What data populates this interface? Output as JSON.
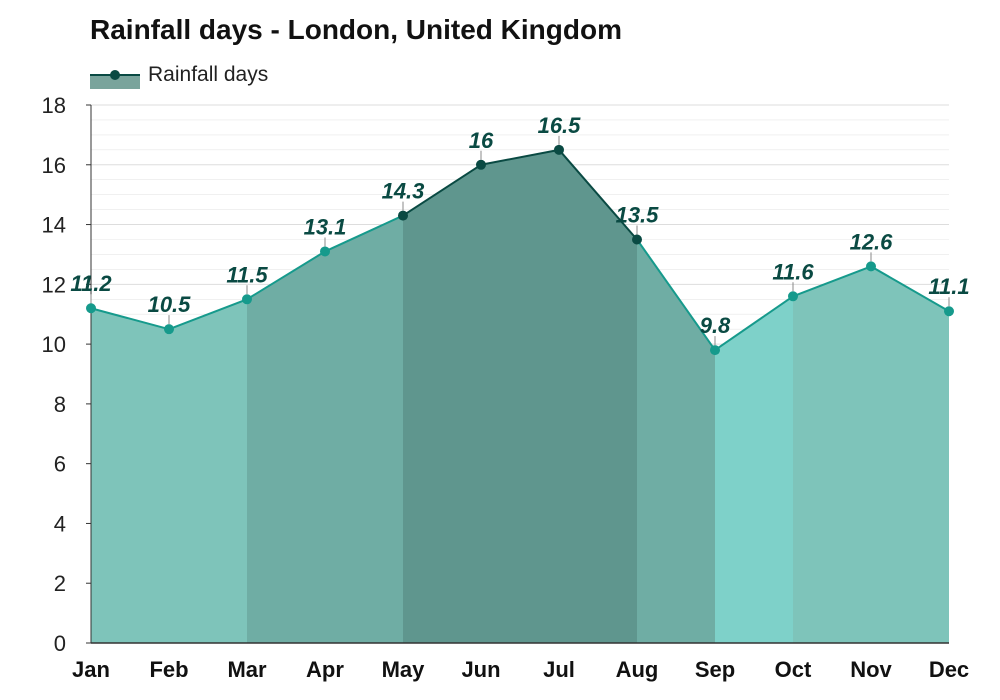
{
  "chart_data": {
    "type": "area",
    "title": "Rainfall days - London, United Kingdom",
    "xlabel": "",
    "ylabel": "",
    "ylim": [
      0,
      18
    ],
    "yticks": [
      0,
      2,
      4,
      6,
      8,
      10,
      12,
      14,
      16,
      18
    ],
    "grid": true,
    "legend_position": "top-left",
    "categories": [
      "Jan",
      "Feb",
      "Mar",
      "Apr",
      "May",
      "Jun",
      "Jul",
      "Aug",
      "Sep",
      "Oct",
      "Nov",
      "Dec"
    ],
    "series": [
      {
        "name": "Rainfall days",
        "values": [
          11.2,
          10.5,
          11.5,
          13.1,
          14.3,
          16,
          16.5,
          13.5,
          9.8,
          11.6,
          12.6,
          11.1
        ],
        "labels": [
          "11.2",
          "10.5",
          "11.5",
          "13.1",
          "14.3",
          "16",
          "16.5",
          "13.5",
          "9.8",
          "11.6",
          "12.6",
          "11.1"
        ]
      }
    ],
    "segment_colors": [
      "#7ec4ba",
      "#7ec4ba",
      "#6fada4",
      "#6fada4",
      "#5f968e",
      "#5f968e",
      "#5f968e",
      "#6fada4",
      "#7ed1c9",
      "#7ec4ba",
      "#7ec4ba",
      "#7ec4ba"
    ],
    "colors": {
      "line_dark": "#0a4a43",
      "line_light": "#169a8c",
      "grid": "#dddddd",
      "axis": "#333333"
    }
  }
}
